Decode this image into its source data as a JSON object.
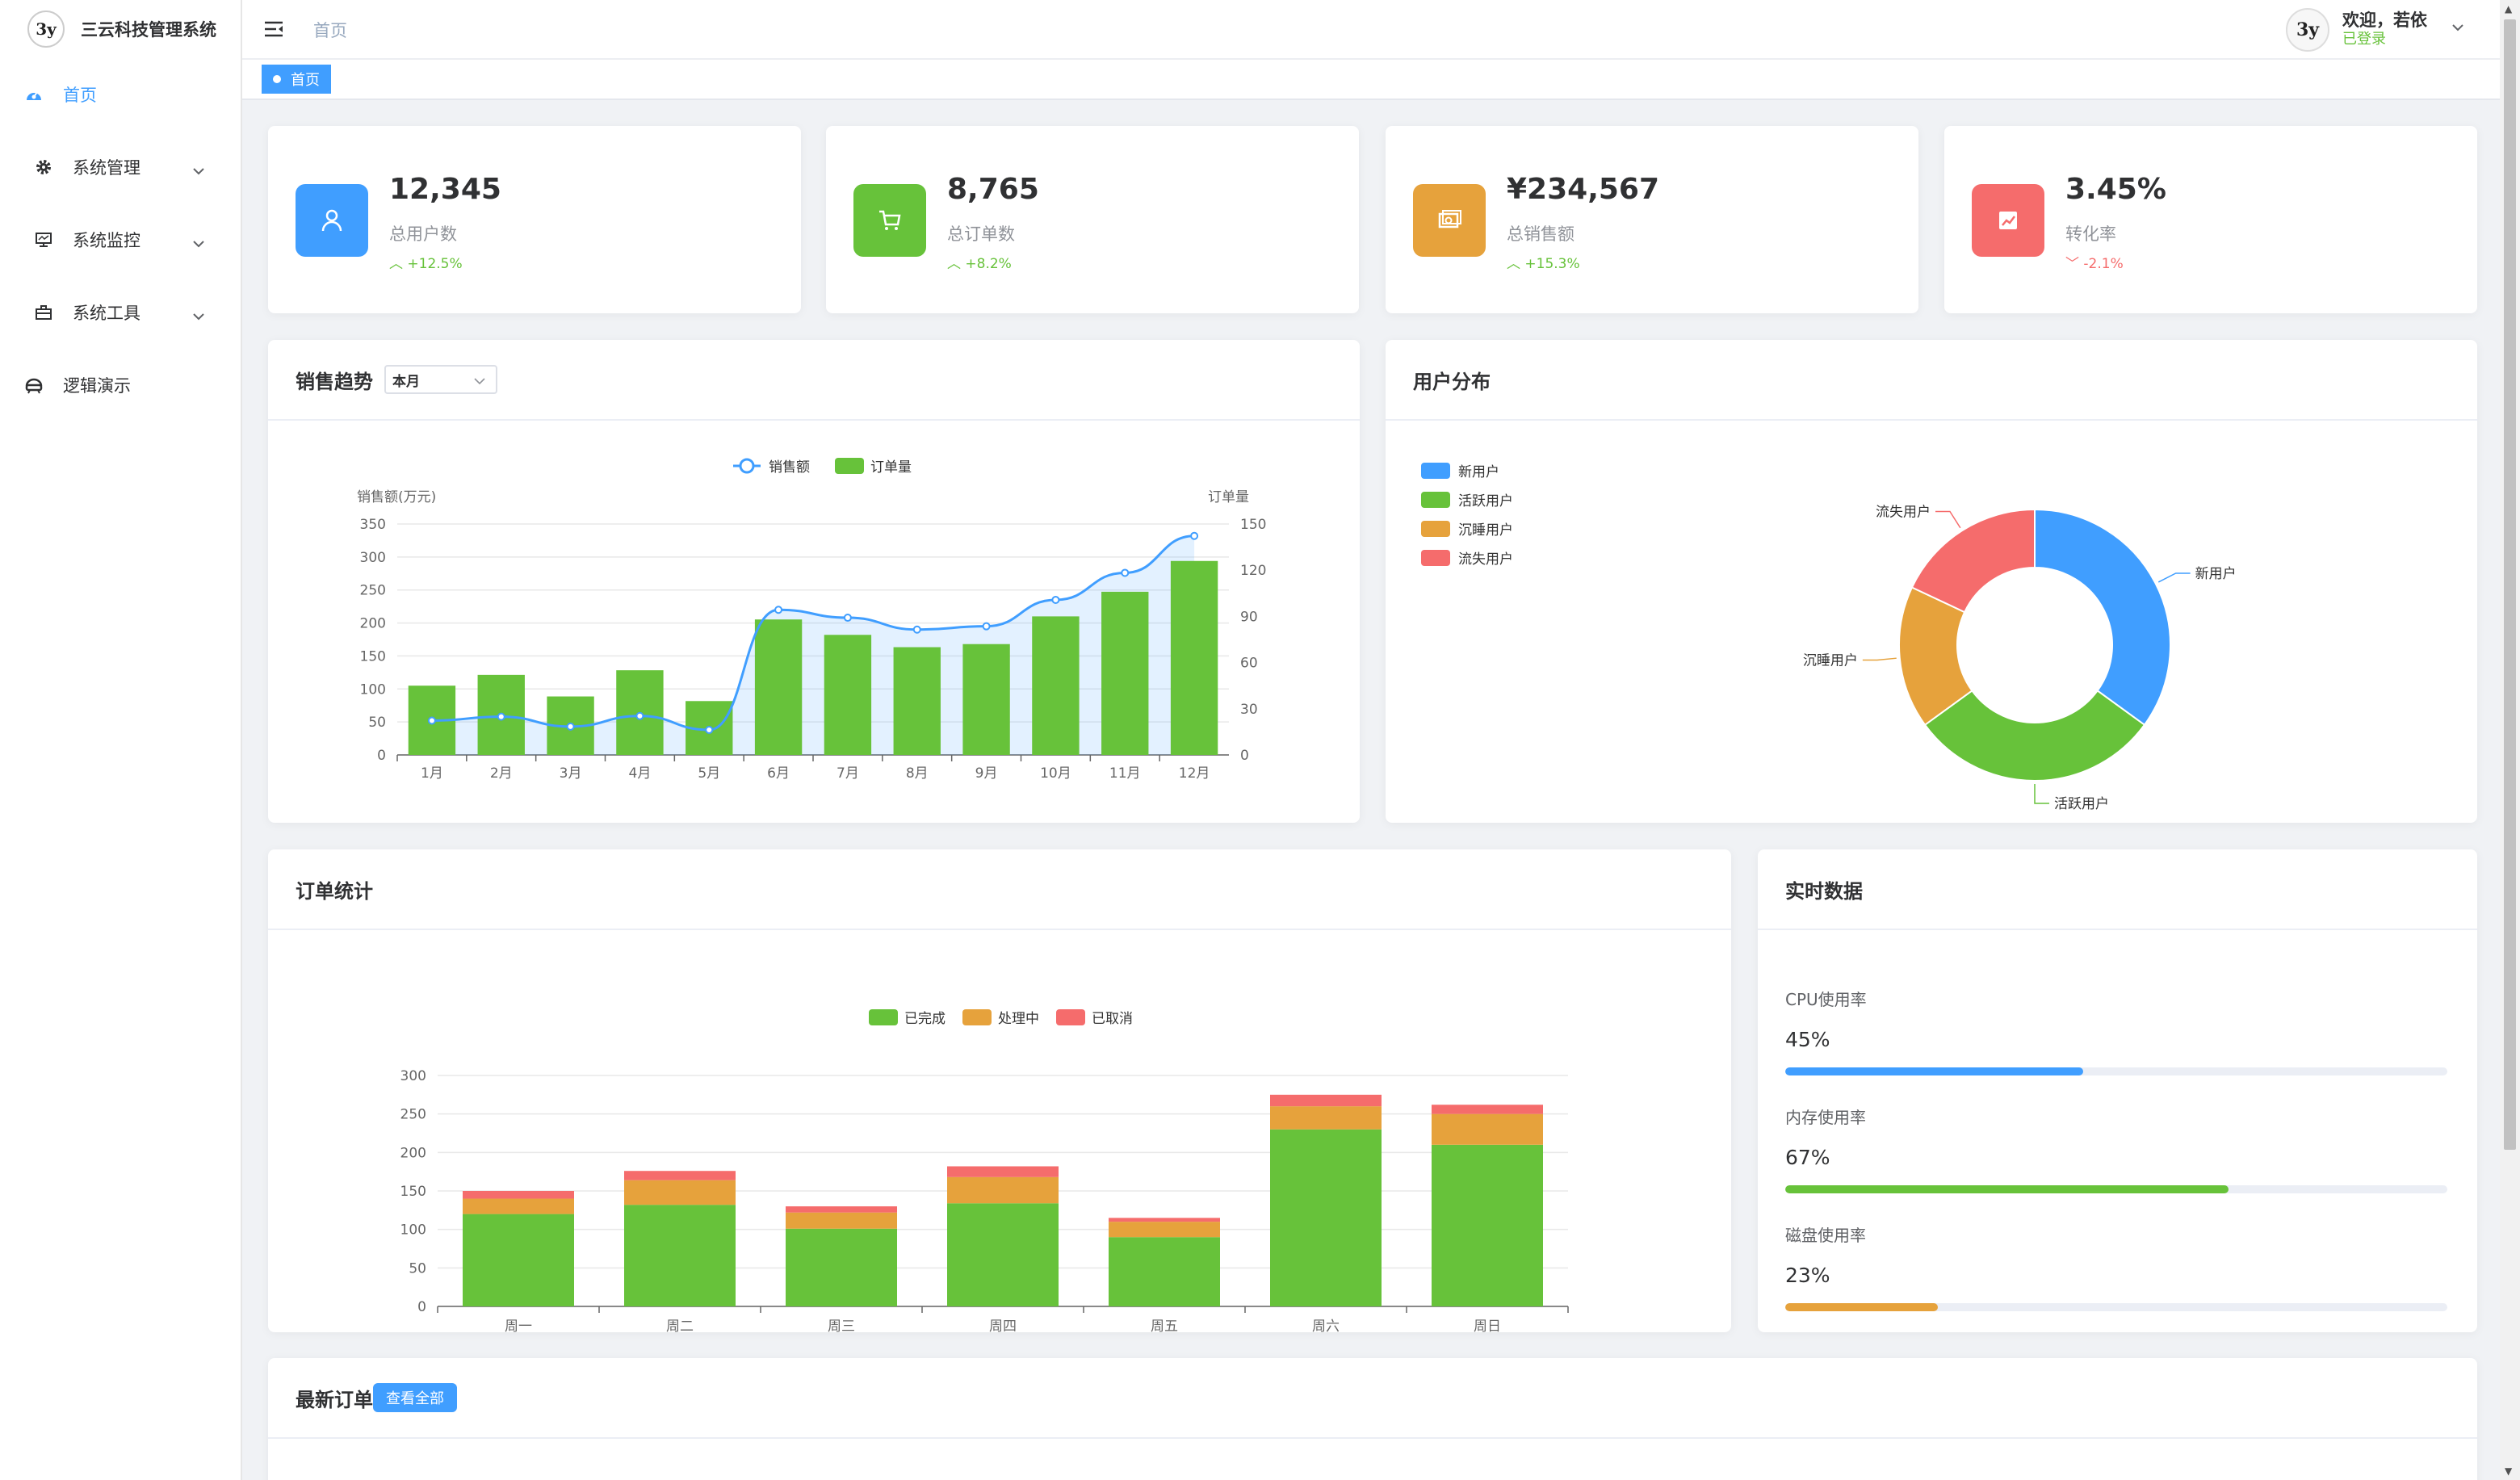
{
  "app": {
    "title": "三云科技管理系统",
    "logo_text": "3y"
  },
  "sidebar": {
    "items": [
      {
        "label": "首页",
        "icon": "dashboard-icon",
        "active": true
      },
      {
        "label": "系统管理",
        "icon": "gear-icon",
        "expandable": true
      },
      {
        "label": "系统监控",
        "icon": "monitor-icon",
        "expandable": true
      },
      {
        "label": "系统工具",
        "icon": "toolbox-icon",
        "expandable": true
      },
      {
        "label": "逻辑演示",
        "icon": "robot-icon"
      }
    ]
  },
  "header": {
    "breadcrumb": "首页",
    "user": {
      "avatar_text": "3y",
      "greeting": "欢迎，若依",
      "status": "已登录"
    }
  },
  "tags": {
    "active_tag": "首页"
  },
  "stats": [
    {
      "value": "12,345",
      "label": "总用户数",
      "trend": "+12.5%",
      "direction": "up",
      "color": "#409eff",
      "icon": "user-icon"
    },
    {
      "value": "8,765",
      "label": "总订单数",
      "trend": "+8.2%",
      "direction": "up",
      "color": "#67c23a",
      "icon": "cart-icon"
    },
    {
      "value": "¥234,567",
      "label": "总销售额",
      "trend": "+15.3%",
      "direction": "up",
      "color": "#e6a23c",
      "icon": "money-icon"
    },
    {
      "value": "3.45%",
      "label": "转化率",
      "trend": "-2.1%",
      "direction": "down",
      "color": "#f56c6c",
      "icon": "chart-trend-icon"
    }
  ],
  "sales_card": {
    "title": "销售趋势",
    "period_select": "本月"
  },
  "user_card": {
    "title": "用户分布"
  },
  "order_card": {
    "title": "订单统计"
  },
  "realtime_card": {
    "title": "实时数据",
    "metrics": [
      {
        "label": "CPU使用率",
        "value": "45%",
        "percent": 45,
        "color": "#409eff"
      },
      {
        "label": "内存使用率",
        "value": "67%",
        "percent": 67,
        "color": "#67c23a"
      },
      {
        "label": "磁盘使用率",
        "value": "23%",
        "percent": 23,
        "color": "#e6a23c"
      }
    ]
  },
  "latest_orders_card": {
    "title": "最新订单",
    "view_all": "查看全部"
  },
  "chart_data": [
    {
      "type": "bar",
      "categories": [
        "1月",
        "2月",
        "3月",
        "4月",
        "5月",
        "6月",
        "7月",
        "8月",
        "9月",
        "10月",
        "11月",
        "12月"
      ],
      "series": [
        {
          "name": "销售额",
          "type": "line",
          "axis": "left",
          "color": "#409eff",
          "values": [
            52,
            58,
            43,
            59,
            38,
            220,
            208,
            190,
            195,
            235,
            276,
            332
          ]
        },
        {
          "name": "订单量",
          "type": "bar",
          "axis": "right",
          "color": "#67c23a",
          "values": [
            45,
            52,
            38,
            55,
            35,
            88,
            78,
            70,
            72,
            90,
            106,
            126
          ]
        }
      ],
      "ylabel": "销售额(万元)",
      "y2label": "订单量",
      "yticks": [
        "0",
        "50",
        "100",
        "150",
        "200",
        "250",
        "300",
        "350"
      ],
      "y2ticks": [
        "0",
        "30",
        "60",
        "90",
        "120",
        "150"
      ],
      "ylim": [
        0,
        350
      ],
      "y2lim": [
        0,
        150
      ],
      "legend": "top-center"
    },
    {
      "type": "pie",
      "donut": true,
      "labels": [
        "新用户",
        "活跃用户",
        "沉睡用户",
        "流失用户"
      ],
      "values": [
        35,
        30,
        17,
        18
      ],
      "colors": [
        "#409eff",
        "#67c23a",
        "#e6a23c",
        "#f56c6c"
      ],
      "legend": "top-left"
    },
    {
      "type": "bar",
      "stacked": true,
      "categories": [
        "周一",
        "周二",
        "周三",
        "周四",
        "周五",
        "周六",
        "周日"
      ],
      "series": [
        {
          "name": "已完成",
          "color": "#67c23a",
          "values": [
            120,
            132,
            101,
            134,
            90,
            230,
            210
          ]
        },
        {
          "name": "处理中",
          "color": "#e6a23c",
          "values": [
            20,
            32,
            21,
            34,
            20,
            30,
            40
          ]
        },
        {
          "name": "已取消",
          "color": "#f56c6c",
          "values": [
            10,
            12,
            8,
            14,
            5,
            15,
            12
          ]
        }
      ],
      "yticks": [
        "0",
        "50",
        "100",
        "150",
        "200",
        "250",
        "300"
      ],
      "ylim": [
        0,
        300
      ],
      "legend": "top-center"
    }
  ]
}
